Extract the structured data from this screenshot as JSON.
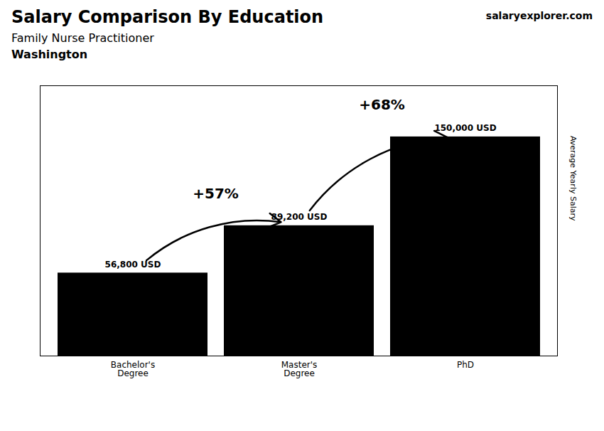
{
  "chart_data": {
    "type": "bar",
    "title": "Salary Comparison By Education",
    "subtitle": "Family Nurse Practitioner",
    "location": "Washington",
    "watermark": [
      "salary",
      "explorer",
      ".com"
    ],
    "ylabel": "Average Yearly Salary",
    "categories": [
      "Bachelor's\nDegree",
      "Master's\nDegree",
      "PhD"
    ],
    "values": [
      56800,
      89200,
      150000
    ],
    "value_labels": [
      "56,800 USD",
      "89,200 USD",
      "150,000 USD"
    ],
    "annotations": [
      "+57%",
      "+68%"
    ],
    "ylim": [
      0,
      185000
    ],
    "data_labels": true,
    "tick_labels": "x",
    "grid": false
  }
}
